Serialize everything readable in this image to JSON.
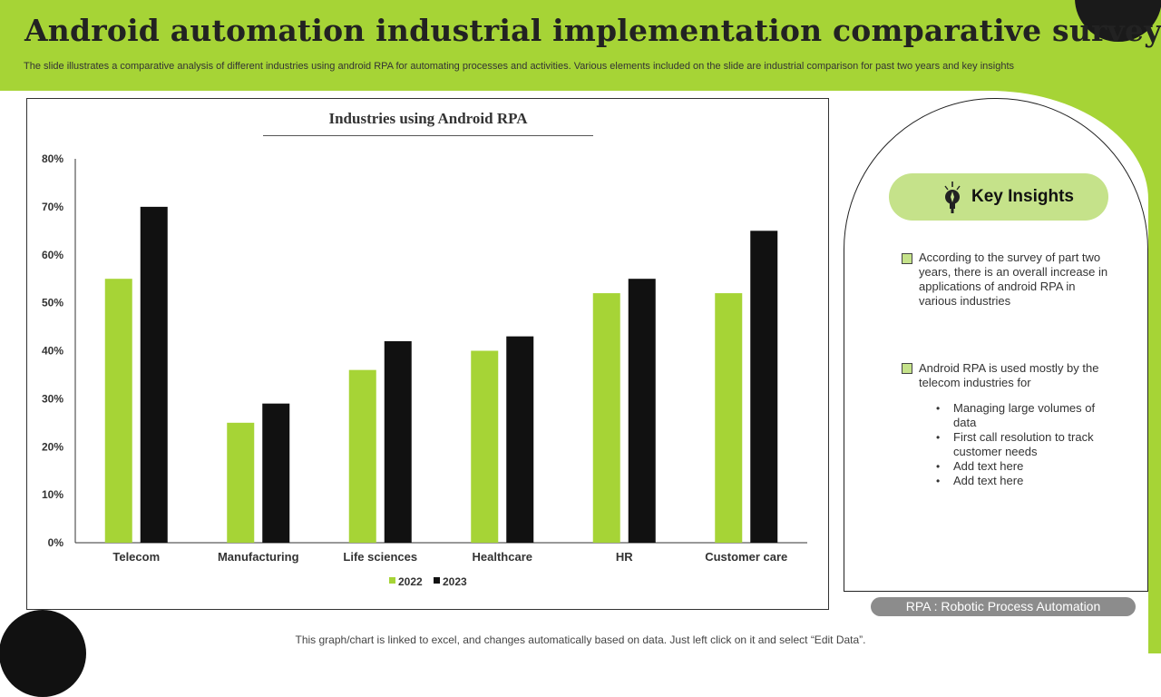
{
  "header": {
    "title": "Android automation industrial implementation comparative survey",
    "subtitle": "The slide illustrates a comparative analysis of different industries using android RPA for automating processes and activities. Various elements included on the slide are industrial comparison for past two years and key insights"
  },
  "colors": {
    "accent": "#a6d436",
    "accent_light": "#c5e28a",
    "series_2022": "#a6d436",
    "series_2023": "#111111",
    "dark": "#1a1a1a"
  },
  "chart_data": {
    "type": "bar",
    "title": "Industries using Android RPA",
    "categories": [
      "Telecom",
      "Manufacturing",
      "Life sciences",
      "Healthcare",
      "HR",
      "Customer care"
    ],
    "series": [
      {
        "name": "2022",
        "values": [
          55,
          25,
          36,
          40,
          52,
          52
        ]
      },
      {
        "name": "2023",
        "values": [
          70,
          29,
          42,
          43,
          55,
          65
        ]
      }
    ],
    "yticks": [
      "0%",
      "10%",
      "20%",
      "30%",
      "40%",
      "50%",
      "60%",
      "70%",
      "80%"
    ],
    "ylim": [
      0,
      80
    ],
    "xlabel": "",
    "ylabel": "",
    "legend_position": "bottom",
    "grid": false
  },
  "insights": {
    "title": "Key Insights",
    "icon": "lightbulb-icon",
    "point1": "According to the survey of part two years, there is an overall increase in applications of android RPA in various industries",
    "point2": "Android RPA is used mostly by the telecom industries for",
    "bullets": [
      "Managing large volumes of data",
      "First call resolution to track customer needs",
      "Add text here",
      "Add text here"
    ]
  },
  "footnote": "RPA : Robotic Process Automation",
  "footer_note": "This graph/chart is linked to excel, and changes automatically based on data. Just left click on it and select “Edit Data”."
}
